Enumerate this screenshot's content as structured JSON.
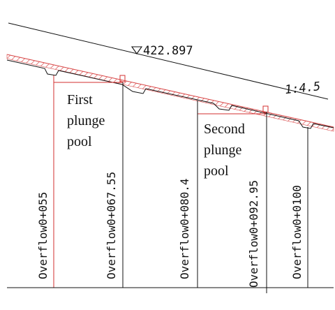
{
  "drawing": {
    "elevation_label": "422.897",
    "slope_label": "1:4.5",
    "pools": [
      {
        "line1": "First",
        "line2": "plunge",
        "line3": "pool"
      },
      {
        "line1": "Second",
        "line2": "plunge",
        "line3": "pool"
      }
    ],
    "stations": [
      "Overflow0+055",
      "Overflow0+067.55",
      "Overflow0+080.4",
      "Overflow0+092.95",
      "Overflow0+0100"
    ],
    "colors": {
      "line": "#111111",
      "section_red": "#d32f2f",
      "hatch": "#d84a4a"
    }
  }
}
